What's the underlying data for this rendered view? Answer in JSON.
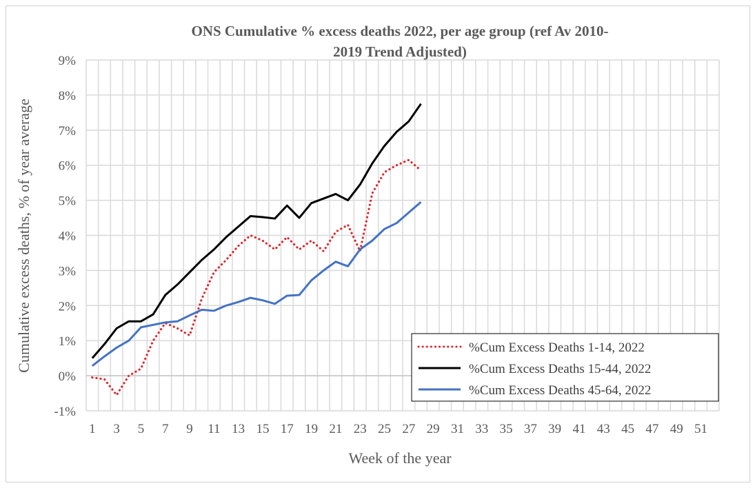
{
  "chart_data": {
    "type": "line",
    "title": "ONS Cumulative % excess deaths 2022, per age group (ref Av 2010-2019 Trend Adjusted)",
    "title_lines": [
      "ONS Cumulative % excess deaths 2022, per age group (ref Av 2010-",
      "2019 Trend Adjusted)"
    ],
    "xlabel": "Week of the year",
    "ylabel": "Cumulative excess deaths, % of  year average",
    "x_categories": [
      1,
      2,
      3,
      4,
      5,
      6,
      7,
      8,
      9,
      10,
      11,
      12,
      13,
      14,
      15,
      16,
      17,
      18,
      19,
      20,
      21,
      22,
      23,
      24,
      25,
      26,
      27,
      28,
      29,
      30,
      31,
      32,
      33,
      34,
      35,
      36,
      37,
      38,
      39,
      40,
      41,
      42,
      43,
      44,
      45,
      46,
      47,
      48,
      49,
      50,
      51,
      52
    ],
    "x_tick_labels": [
      "1",
      "3",
      "5",
      "7",
      "9",
      "11",
      "13",
      "15",
      "17",
      "19",
      "21",
      "23",
      "25",
      "27",
      "29",
      "31",
      "33",
      "35",
      "37",
      "39",
      "41",
      "43",
      "45",
      "47",
      "49",
      "51"
    ],
    "ylim": [
      -1,
      9
    ],
    "y_tick_labels": [
      "-1%",
      "0%",
      "1%",
      "2%",
      "3%",
      "4%",
      "5%",
      "6%",
      "7%",
      "8%",
      "9%"
    ],
    "grid": "both",
    "legend_position": "bottom-right",
    "series": [
      {
        "name": "%Cum Excess Deaths 1-14, 2022",
        "color": "#e0242a",
        "style": "dotted",
        "values": [
          -0.05,
          -0.1,
          -0.55,
          0.0,
          0.2,
          1.0,
          1.5,
          1.35,
          1.15,
          2.2,
          2.95,
          3.3,
          3.7,
          4.0,
          3.85,
          3.6,
          3.95,
          3.6,
          3.85,
          3.55,
          4.1,
          4.3,
          3.55,
          5.2,
          5.8,
          6.0,
          6.15,
          5.85
        ]
      },
      {
        "name": "%Cum Excess Deaths 15-44, 2022",
        "color": "#000000",
        "style": "solid",
        "values": [
          0.5,
          0.9,
          1.35,
          1.55,
          1.55,
          1.75,
          2.3,
          2.6,
          2.95,
          3.3,
          3.6,
          3.95,
          4.25,
          4.55,
          4.52,
          4.48,
          4.85,
          4.5,
          4.92,
          5.05,
          5.18,
          5.0,
          5.45,
          6.05,
          6.55,
          6.95,
          7.25,
          7.75
        ]
      },
      {
        "name": "%Cum Excess Deaths 45-64, 2022",
        "color": "#4472c4",
        "style": "solid",
        "values": [
          0.28,
          0.55,
          0.8,
          1.0,
          1.38,
          1.45,
          1.52,
          1.55,
          1.72,
          1.88,
          1.85,
          2.0,
          2.1,
          2.22,
          2.15,
          2.05,
          2.28,
          2.3,
          2.72,
          3.0,
          3.25,
          3.12,
          3.6,
          3.85,
          4.18,
          4.35,
          4.65,
          4.95
        ]
      }
    ]
  }
}
